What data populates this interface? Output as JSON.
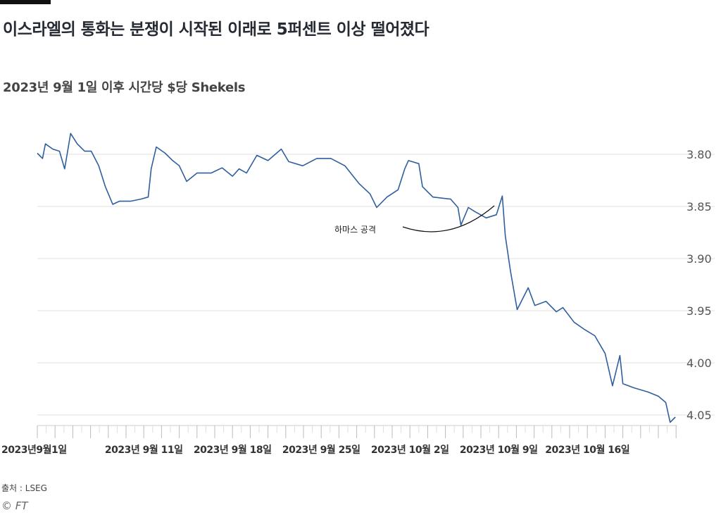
{
  "title": "이스라엘의 통화는 분쟁이 시작된 이래로 5퍼센트 이상 떨어졌다",
  "subtitle": "2023년 9월 1일 이후 시간당 $당 Shekels",
  "source": "출처 : LSEG",
  "credit": "© FT",
  "chart_data": {
    "type": "line",
    "title": "이스라엘의 통화는 분쟁이 시작된 이래로 5퍼센트 이상 떨어졌다",
    "subtitle": "2023년 9월 1일 이후 시간당 $당 Shekels",
    "y_inverted": true,
    "ylim": [
      3.8,
      4.05
    ],
    "y_ticks": [
      "3.80",
      "3.85",
      "3.90",
      "3.95",
      "4.00",
      "4.05"
    ],
    "y_axis_position": "right",
    "grid": true,
    "x_ticks": [
      {
        "date": "2023-09-01",
        "label": "2023년9월1일"
      },
      {
        "date": "2023-09-11",
        "label": "2023년 9월 11일"
      },
      {
        "date": "2023-09-18",
        "label": "2023년 9월 18일"
      },
      {
        "date": "2023-09-25",
        "label": "2023년 9월 25일"
      },
      {
        "date": "2023-10-02",
        "label": "2023년 10월 2일"
      },
      {
        "date": "2023-10-09",
        "label": "2023년 10월 9일"
      },
      {
        "date": "2023-10-16",
        "label": "2023년 10월 16일"
      }
    ],
    "line_color": "#2e5f9e",
    "annotation": {
      "label": "하마스 공격",
      "date": "2023-10-06T21"
    },
    "series": [
      {
        "points": [
          [
            "2023-09-01T00",
            3.799
          ],
          [
            "2023-09-01T07",
            3.804
          ],
          [
            "2023-09-01T11",
            3.79
          ],
          [
            "2023-09-01T21",
            3.795
          ],
          [
            "2023-09-04T06",
            3.797
          ],
          [
            "2023-09-04T13",
            3.814
          ],
          [
            "2023-09-04T21",
            3.78
          ],
          [
            "2023-09-05T06",
            3.79
          ],
          [
            "2023-09-05T16",
            3.797
          ],
          [
            "2023-09-06T01",
            3.797
          ],
          [
            "2023-09-06T11",
            3.811
          ],
          [
            "2023-09-06T20",
            3.831
          ],
          [
            "2023-09-07T06",
            3.848
          ],
          [
            "2023-09-07T15",
            3.845
          ],
          [
            "2023-09-08T06",
            3.845
          ],
          [
            "2023-09-08T20",
            3.843
          ],
          [
            "2023-09-11T06",
            3.841
          ],
          [
            "2023-09-11T10",
            3.814
          ],
          [
            "2023-09-11T17",
            3.793
          ],
          [
            "2023-09-12T05",
            3.799
          ],
          [
            "2023-09-12T15",
            3.806
          ],
          [
            "2023-09-13T00",
            3.811
          ],
          [
            "2023-09-13T10",
            3.826
          ],
          [
            "2023-09-14T00",
            3.818
          ],
          [
            "2023-09-14T19",
            3.818
          ],
          [
            "2023-09-15T10",
            3.813
          ],
          [
            "2023-09-18T00",
            3.821
          ],
          [
            "2023-09-18T09",
            3.814
          ],
          [
            "2023-09-18T19",
            3.818
          ],
          [
            "2023-09-19T09",
            3.801
          ],
          [
            "2023-09-20T00",
            3.806
          ],
          [
            "2023-09-20T18",
            3.795
          ],
          [
            "2023-09-21T04",
            3.807
          ],
          [
            "2023-09-21T23",
            3.811
          ],
          [
            "2023-09-22T18",
            3.804
          ],
          [
            "2023-09-25T13",
            3.804
          ],
          [
            "2023-09-26T08",
            3.811
          ],
          [
            "2023-09-27T03",
            3.828
          ],
          [
            "2023-09-27T18",
            3.838
          ],
          [
            "2023-09-28T03",
            3.851
          ],
          [
            "2023-09-28T17",
            3.841
          ],
          [
            "2023-09-29T08",
            3.834
          ],
          [
            "2023-09-29T17",
            3.814
          ],
          [
            "2023-09-29T22",
            3.806
          ],
          [
            "2023-10-02T12",
            3.809
          ],
          [
            "2023-10-02T17",
            3.831
          ],
          [
            "2023-10-03T07",
            3.841
          ],
          [
            "2023-10-04T07",
            3.843
          ],
          [
            "2023-10-04T17",
            3.851
          ],
          [
            "2023-10-04T21",
            3.868
          ],
          [
            "2023-10-05T07",
            3.851
          ],
          [
            "2023-10-05T16",
            3.855
          ],
          [
            "2023-10-06T07",
            3.861
          ],
          [
            "2023-10-06T21",
            3.858
          ],
          [
            "2023-10-09T05",
            3.84
          ],
          [
            "2023-10-09T09",
            3.878
          ],
          [
            "2023-10-09T16",
            3.912
          ],
          [
            "2023-10-10T01",
            3.949
          ],
          [
            "2023-10-10T16",
            3.928
          ],
          [
            "2023-10-11T01",
            3.945
          ],
          [
            "2023-10-11T16",
            3.941
          ],
          [
            "2023-10-12T06",
            3.951
          ],
          [
            "2023-10-12T15",
            3.947
          ],
          [
            "2023-10-13T06",
            3.961
          ],
          [
            "2023-10-13T20",
            3.968
          ],
          [
            "2023-10-16T10",
            3.974
          ],
          [
            "2023-10-17T00",
            3.991
          ],
          [
            "2023-10-17T10",
            4.022
          ],
          [
            "2023-10-17T20",
            3.993
          ],
          [
            "2023-10-18T00",
            4.02
          ],
          [
            "2023-10-18T15",
            4.024
          ],
          [
            "2023-10-19T10",
            4.028
          ],
          [
            "2023-10-20T00",
            4.032
          ],
          [
            "2023-10-20T10",
            4.038
          ],
          [
            "2023-10-20T16",
            4.057
          ],
          [
            "2023-10-20T23",
            4.052
          ]
        ]
      }
    ]
  }
}
